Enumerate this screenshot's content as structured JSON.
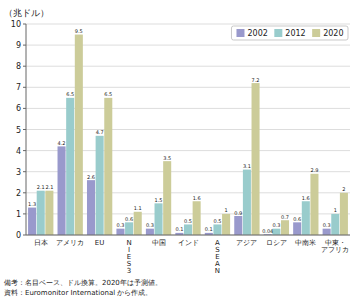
{
  "chart_data": {
    "type": "bar",
    "title": "（兆ドル）",
    "categories": [
      "日本",
      "アメリカ",
      "EU",
      "N\nI\nE\nS\n3",
      "中国",
      "インド",
      "A\nS\nE\nA\nN",
      "アジア",
      "ロシア",
      "中南米",
      "中東・\nアフリカ"
    ],
    "series": [
      {
        "name": "2002",
        "color": "#9999cc",
        "values": [
          1.3,
          4.2,
          2.6,
          0.3,
          0.3,
          0.1,
          0.1,
          0.9,
          0.04,
          0.6,
          0.3
        ]
      },
      {
        "name": "2012",
        "color": "#99cccc",
        "values": [
          2.1,
          6.5,
          4.7,
          0.6,
          1.5,
          0.5,
          0.5,
          3.1,
          0.3,
          1.6,
          1.0
        ]
      },
      {
        "name": "2020",
        "color": "#cccc99",
        "values": [
          2.1,
          9.5,
          6.5,
          1.1,
          3.5,
          1.6,
          1.0,
          7.2,
          0.7,
          2.9,
          2.0
        ]
      }
    ],
    "ylim": [
      0,
      10
    ],
    "yticks": [
      0,
      1,
      2,
      3,
      4,
      5,
      6,
      7,
      8,
      9,
      10
    ],
    "grid": true,
    "legend": "upper right",
    "data_labels": true,
    "annotations": [
      "備考：名目ベース、ドル換算。2020年は予測値。",
      "資料：Euromonitor International から作成。"
    ]
  }
}
